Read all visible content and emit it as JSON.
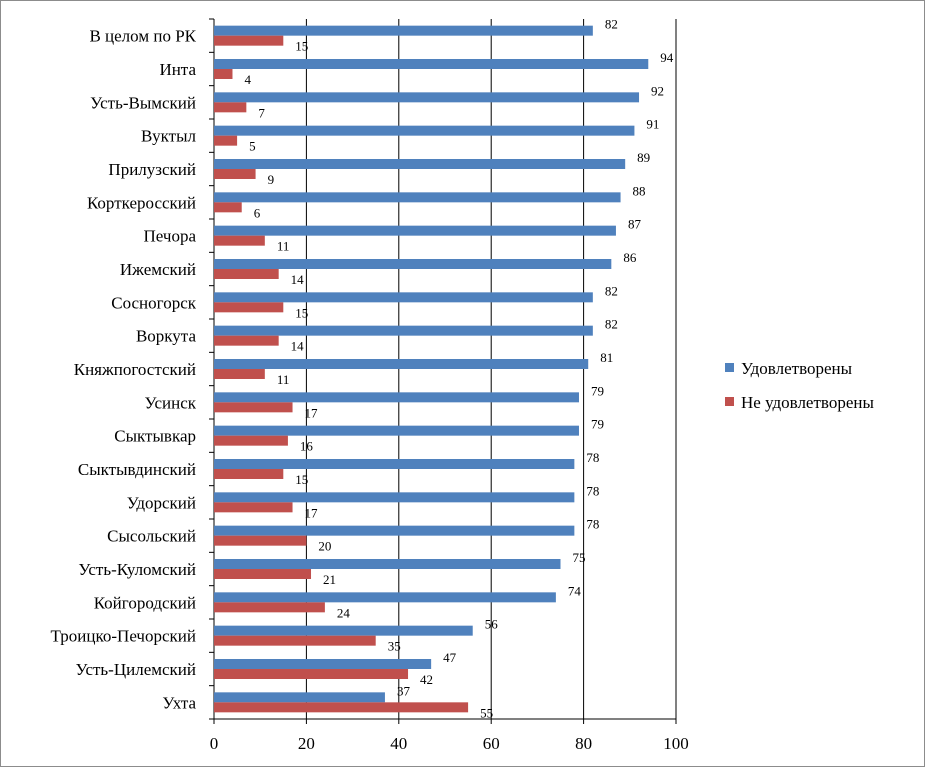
{
  "chart_data": {
    "type": "bar",
    "orientation": "horizontal",
    "categories": [
      "В целом по РК",
      "Инта",
      "Усть-Вымский",
      "Вуктыл",
      "Прилузский",
      "Корткеросский",
      "Печора",
      "Ижемский",
      "Сосногорск",
      "Воркута",
      "Княжпогостский",
      "Усинск",
      "Сыктывкар",
      "Сыктывдинский",
      "Удорский",
      "Сысольский",
      "Усть-Куломский",
      "Койгородский",
      "Троицко-Печорский",
      "Усть-Цилемский",
      "Ухта"
    ],
    "series": [
      {
        "name": "Удовлетворены",
        "color": "#4f81bd",
        "values": [
          82,
          94,
          92,
          91,
          89,
          88,
          87,
          86,
          82,
          82,
          81,
          79,
          79,
          78,
          78,
          78,
          75,
          74,
          56,
          47,
          37
        ]
      },
      {
        "name": "Не удовлетворены",
        "color": "#c0504d",
        "values": [
          15,
          4,
          7,
          5,
          9,
          6,
          11,
          14,
          15,
          14,
          11,
          17,
          16,
          15,
          17,
          20,
          21,
          24,
          35,
          42,
          55
        ]
      }
    ],
    "xlim": [
      0,
      100
    ],
    "xticks": [
      0,
      20,
      40,
      60,
      80,
      100
    ],
    "grid": "vertical",
    "legend_position": "right",
    "title": "",
    "xlabel": "",
    "ylabel": ""
  }
}
